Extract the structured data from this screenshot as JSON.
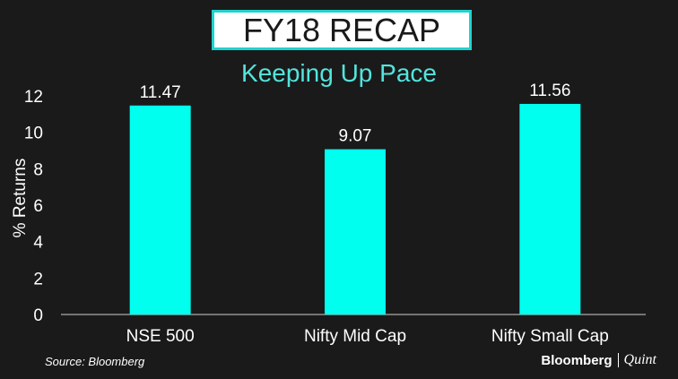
{
  "header": {
    "title": "FY18 RECAP",
    "subtitle": "Keeping Up Pace"
  },
  "footer": {
    "source": "Source: Bloomberg",
    "brand_primary": "Bloomberg",
    "brand_secondary": "Quint"
  },
  "colors": {
    "background": "#1a1a1a",
    "bar": "#00ffee",
    "accent": "#1fd3cf",
    "subtitle": "#52e5dd"
  },
  "chart_data": {
    "type": "bar",
    "title": "FY18 RECAP",
    "subtitle": "Keeping Up Pace",
    "xlabel": "",
    "ylabel": "% Returns",
    "categories": [
      "NSE 500",
      "Nifty Mid Cap",
      "Nifty Small Cap"
    ],
    "values": [
      11.47,
      9.07,
      11.56
    ],
    "data_labels": [
      "11.47",
      "9.07",
      "11.56"
    ],
    "ylim": [
      0,
      12
    ],
    "yticks": [
      0,
      2,
      4,
      6,
      8,
      10,
      12
    ],
    "grid": false,
    "legend": "none"
  }
}
